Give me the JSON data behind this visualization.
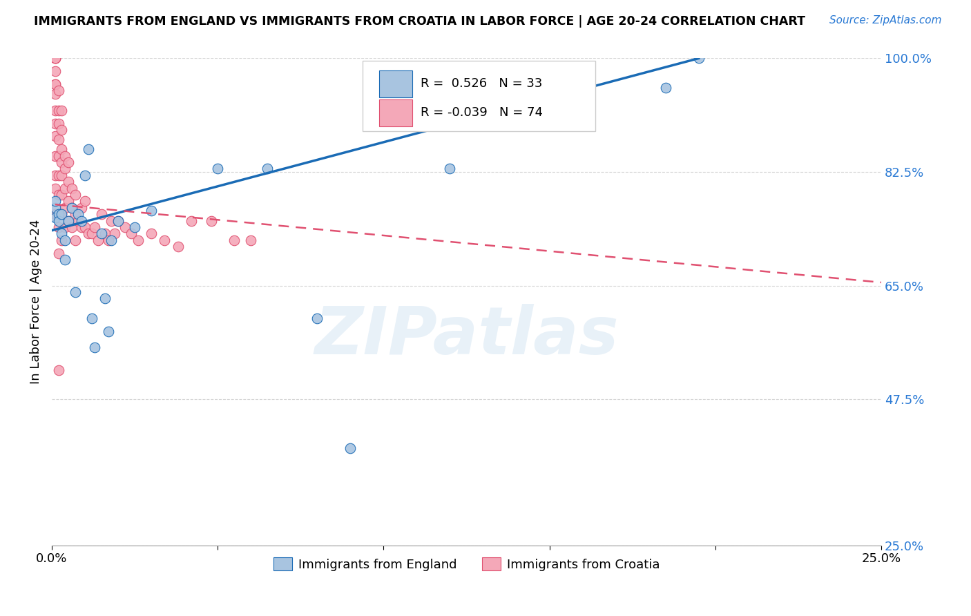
{
  "title": "IMMIGRANTS FROM ENGLAND VS IMMIGRANTS FROM CROATIA IN LABOR FORCE | AGE 20-24 CORRELATION CHART",
  "source": "Source: ZipAtlas.com",
  "ylabel": "In Labor Force | Age 20-24",
  "watermark": "ZIPatlas",
  "r_england": 0.526,
  "n_england": 33,
  "r_croatia": -0.039,
  "n_croatia": 74,
  "xmin": 0.0,
  "xmax": 0.25,
  "ymin": 0.25,
  "ymax": 1.0,
  "yticks": [
    0.25,
    0.475,
    0.65,
    0.825,
    1.0
  ],
  "ytick_labels": [
    "25.0%",
    "47.5%",
    "65.0%",
    "82.5%",
    "100.0%"
  ],
  "xticks": [
    0.0,
    0.05,
    0.1,
    0.15,
    0.2,
    0.25
  ],
  "xtick_labels": [
    "0.0%",
    "",
    "",
    "",
    "",
    "25.0%"
  ],
  "color_england": "#a8c4e0",
  "color_croatia": "#f4a8b8",
  "line_color_england": "#1a6bb5",
  "line_color_croatia": "#e05070",
  "england_x": [
    0.001,
    0.001,
    0.001,
    0.002,
    0.002,
    0.003,
    0.003,
    0.004,
    0.004,
    0.005,
    0.006,
    0.007,
    0.008,
    0.009,
    0.01,
    0.011,
    0.012,
    0.013,
    0.015,
    0.016,
    0.017,
    0.018,
    0.02,
    0.025,
    0.03,
    0.05,
    0.065,
    0.08,
    0.09,
    0.12,
    0.155,
    0.185,
    0.195
  ],
  "england_y": [
    0.755,
    0.77,
    0.78,
    0.76,
    0.75,
    0.73,
    0.76,
    0.72,
    0.69,
    0.75,
    0.77,
    0.64,
    0.76,
    0.75,
    0.82,
    0.86,
    0.6,
    0.555,
    0.73,
    0.63,
    0.58,
    0.72,
    0.75,
    0.74,
    0.765,
    0.83,
    0.83,
    0.6,
    0.4,
    0.83,
    0.98,
    0.955,
    1.0
  ],
  "croatia_x": [
    0.001,
    0.001,
    0.001,
    0.001,
    0.001,
    0.001,
    0.001,
    0.001,
    0.001,
    0.001,
    0.001,
    0.001,
    0.001,
    0.001,
    0.001,
    0.002,
    0.002,
    0.002,
    0.002,
    0.002,
    0.002,
    0.002,
    0.002,
    0.002,
    0.002,
    0.002,
    0.003,
    0.003,
    0.003,
    0.003,
    0.003,
    0.003,
    0.003,
    0.003,
    0.004,
    0.004,
    0.004,
    0.004,
    0.004,
    0.005,
    0.005,
    0.005,
    0.005,
    0.006,
    0.006,
    0.006,
    0.007,
    0.007,
    0.007,
    0.008,
    0.009,
    0.009,
    0.01,
    0.01,
    0.011,
    0.012,
    0.013,
    0.014,
    0.015,
    0.016,
    0.017,
    0.018,
    0.019,
    0.02,
    0.022,
    0.024,
    0.026,
    0.03,
    0.034,
    0.038,
    0.042,
    0.048,
    0.055,
    0.06
  ],
  "croatia_y": [
    1.0,
    1.0,
    1.0,
    1.0,
    0.98,
    0.96,
    0.96,
    0.945,
    0.92,
    0.9,
    0.88,
    0.85,
    0.82,
    0.8,
    0.76,
    0.95,
    0.92,
    0.9,
    0.875,
    0.85,
    0.82,
    0.79,
    0.76,
    0.74,
    0.7,
    0.52,
    0.92,
    0.89,
    0.86,
    0.84,
    0.82,
    0.79,
    0.76,
    0.72,
    0.85,
    0.83,
    0.8,
    0.77,
    0.74,
    0.84,
    0.81,
    0.78,
    0.75,
    0.8,
    0.77,
    0.74,
    0.79,
    0.76,
    0.72,
    0.75,
    0.77,
    0.74,
    0.78,
    0.74,
    0.73,
    0.73,
    0.74,
    0.72,
    0.76,
    0.73,
    0.72,
    0.75,
    0.73,
    0.75,
    0.74,
    0.73,
    0.72,
    0.73,
    0.72,
    0.71,
    0.75,
    0.75,
    0.72,
    0.72
  ],
  "england_line_x0": 0.0,
  "england_line_x1": 0.195,
  "england_line_y0": 0.735,
  "england_line_y1": 1.0,
  "croatia_line_x0": 0.001,
  "croatia_line_x1": 0.25,
  "croatia_line_y0": 0.775,
  "croatia_line_y1": 0.655
}
